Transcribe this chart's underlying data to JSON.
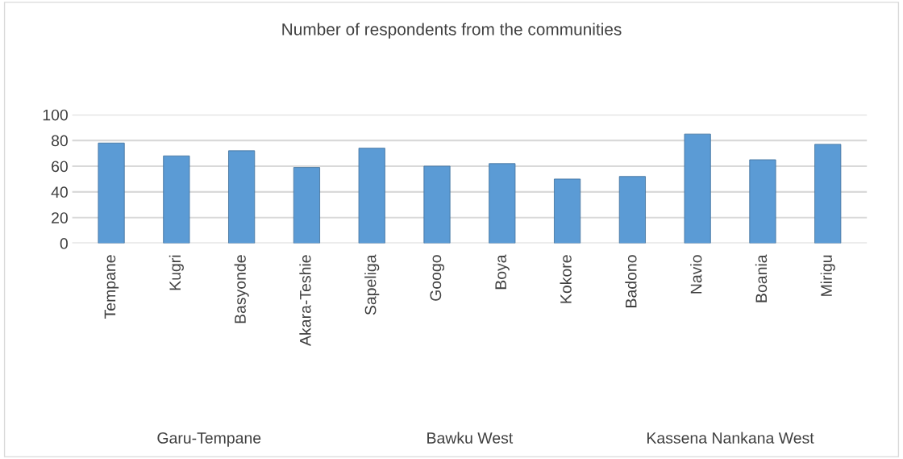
{
  "chart_data": {
    "type": "bar",
    "title": "Number of respondents from the communities",
    "categories": [
      "Tempane",
      "Kugri",
      "Basyonde",
      "Akara-Teshie",
      "Sapeliga",
      "Googo",
      "Boya",
      "Kokore",
      "Badono",
      "Navio",
      "Boania",
      "Mirigu"
    ],
    "values": [
      78,
      68,
      72,
      59,
      74,
      60,
      62,
      50,
      52,
      85,
      65,
      77
    ],
    "color": "#5b9bd5",
    "ylim": [
      0,
      100
    ],
    "yticks": [
      0,
      20,
      40,
      60,
      80,
      100
    ],
    "grid": "y",
    "annotations": [
      "Garu-Tempane",
      "Bawku West",
      "Kassena Nankana West"
    ]
  }
}
